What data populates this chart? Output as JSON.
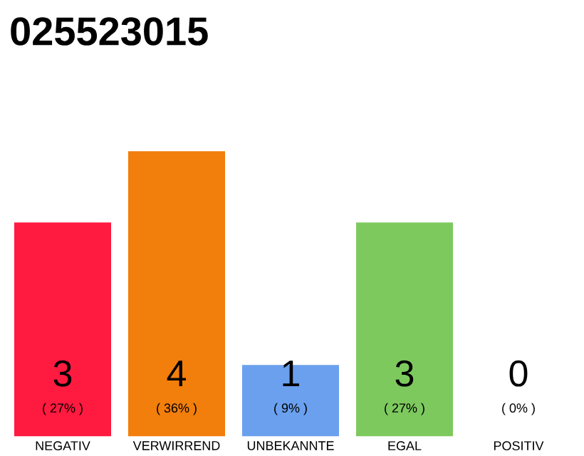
{
  "chart_data": {
    "type": "bar",
    "title": "025523015",
    "categories": [
      "NEGATIV",
      "VERWIRREND",
      "UNBEKANNTE",
      "EGAL",
      "POSITIV"
    ],
    "values": [
      27,
      36,
      9,
      27,
      0
    ],
    "colors": [
      "#ff1a40",
      "#f27e0c",
      "#6aa0ee",
      "#7dc95e",
      "#e0e0e0"
    ],
    "value_labels": [
      "( 27% )",
      "( 36% )",
      "( 9% )",
      "( 27% )",
      "( 0% )"
    ],
    "annotations": [
      "3",
      "4",
      "1",
      "3",
      "0"
    ]
  }
}
